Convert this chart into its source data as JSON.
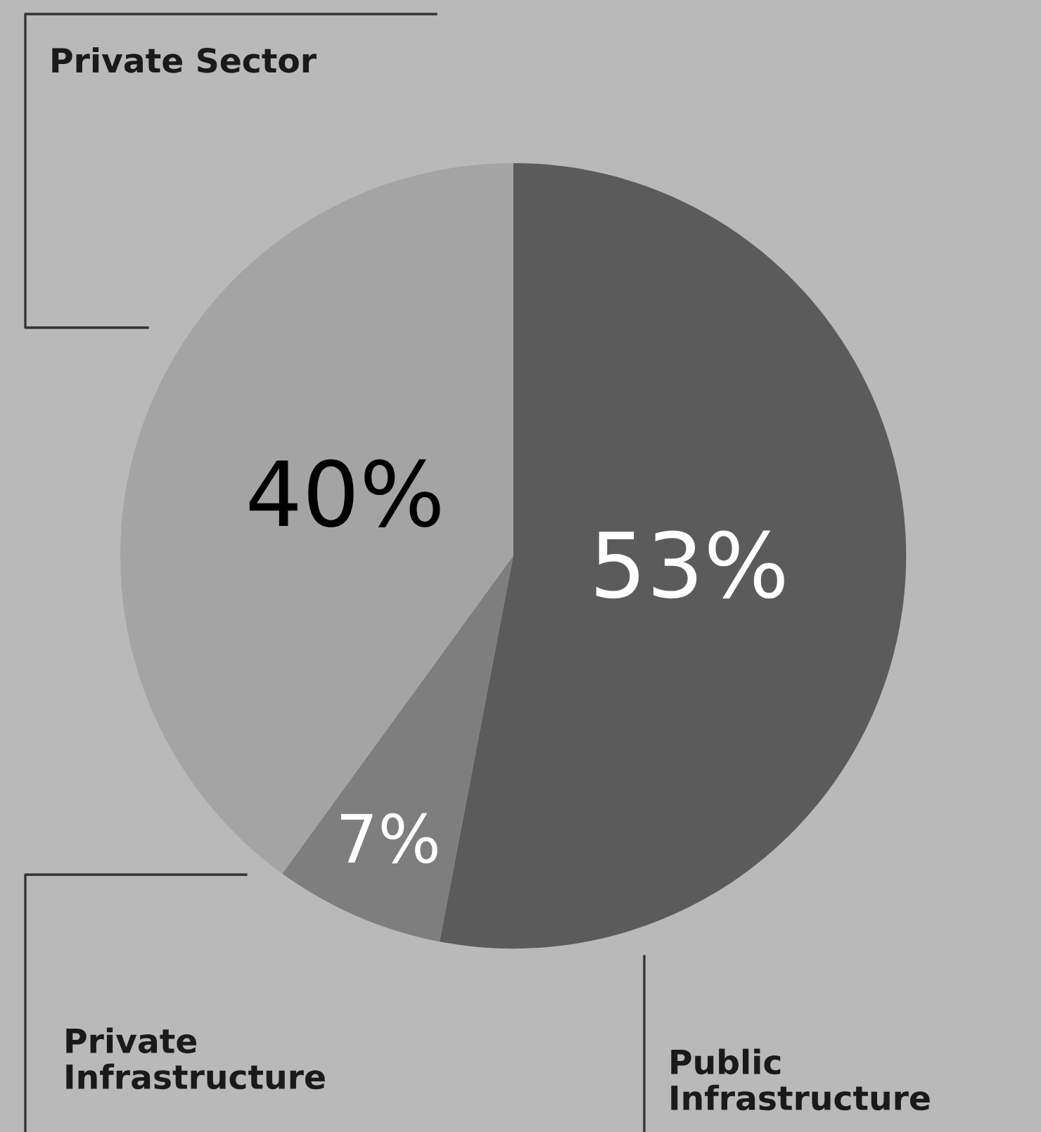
{
  "chart_data": {
    "type": "pie",
    "categories": [
      "Public Infrastructure",
      "Private Infrastructure",
      "Private Sector"
    ],
    "values": [
      53,
      7,
      40
    ],
    "colors": [
      "#5b5b5b",
      "#7e7e7e",
      "#a4a4a4"
    ],
    "value_labels": [
      "53%",
      "7%",
      "40%"
    ]
  }
}
